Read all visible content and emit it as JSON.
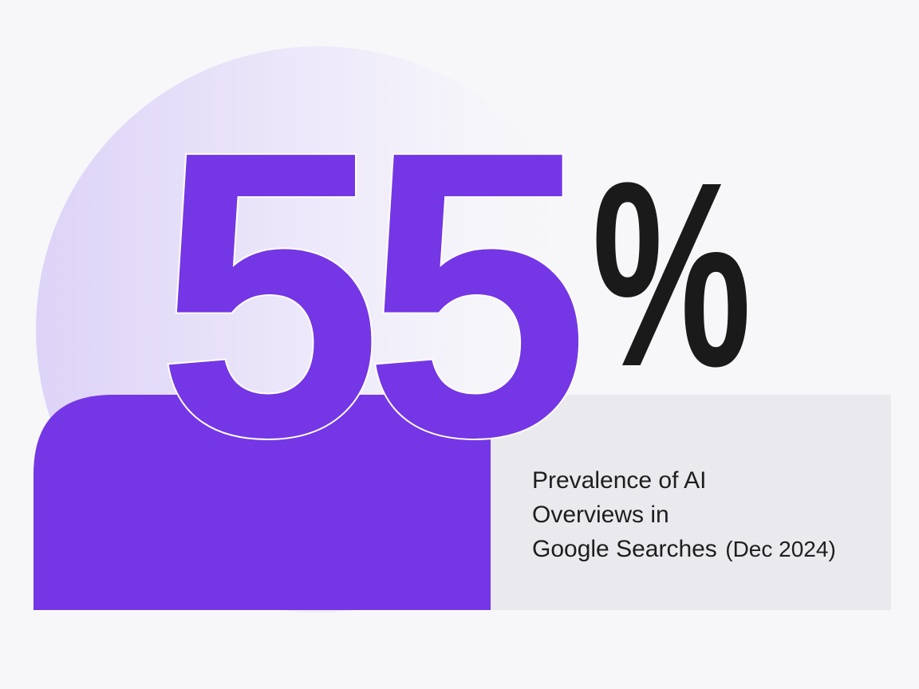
{
  "stat": {
    "value": 55,
    "unit": "%"
  },
  "caption": {
    "lines": [
      "Prevalence of AI",
      "Overviews in",
      "Google Searches"
    ],
    "note": "(Dec 2024)"
  }
}
